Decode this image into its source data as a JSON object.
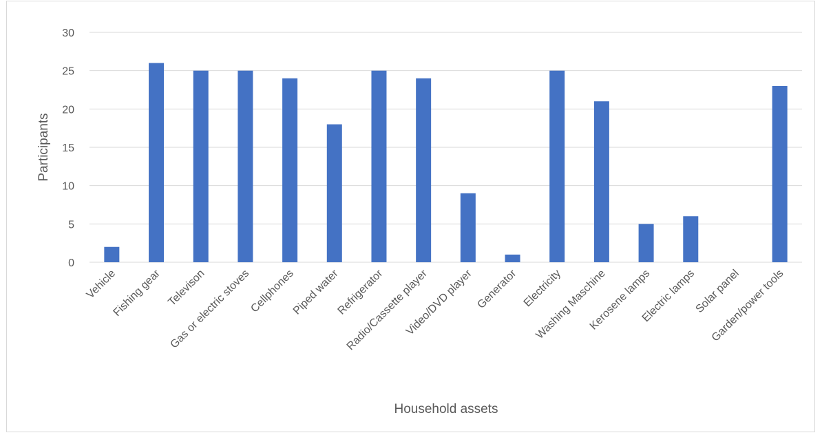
{
  "chart_data": {
    "type": "bar",
    "title": "",
    "xlabel": "Household assets",
    "ylabel": "Participants",
    "ylim": [
      0,
      30
    ],
    "yticks": [
      0,
      5,
      10,
      15,
      20,
      25,
      30
    ],
    "grid": true,
    "legend": "none",
    "bar_color": "#4472c4",
    "categories": [
      "Vehicle",
      "Fishing gear",
      "Televison",
      "Gas or electric stoves",
      "Cellphones",
      "Piped water",
      "Refrigerator",
      "Radio/Cassette player",
      "Video/DVD player",
      "Generator",
      "Electricity",
      "Washing Maschine",
      "Kerosene lamps",
      "Electric lamps",
      "Solar panel",
      "Garden/power tools"
    ],
    "values": [
      2,
      26,
      25,
      25,
      24,
      18,
      25,
      24,
      9,
      1,
      25,
      21,
      5,
      6,
      0,
      23
    ]
  }
}
